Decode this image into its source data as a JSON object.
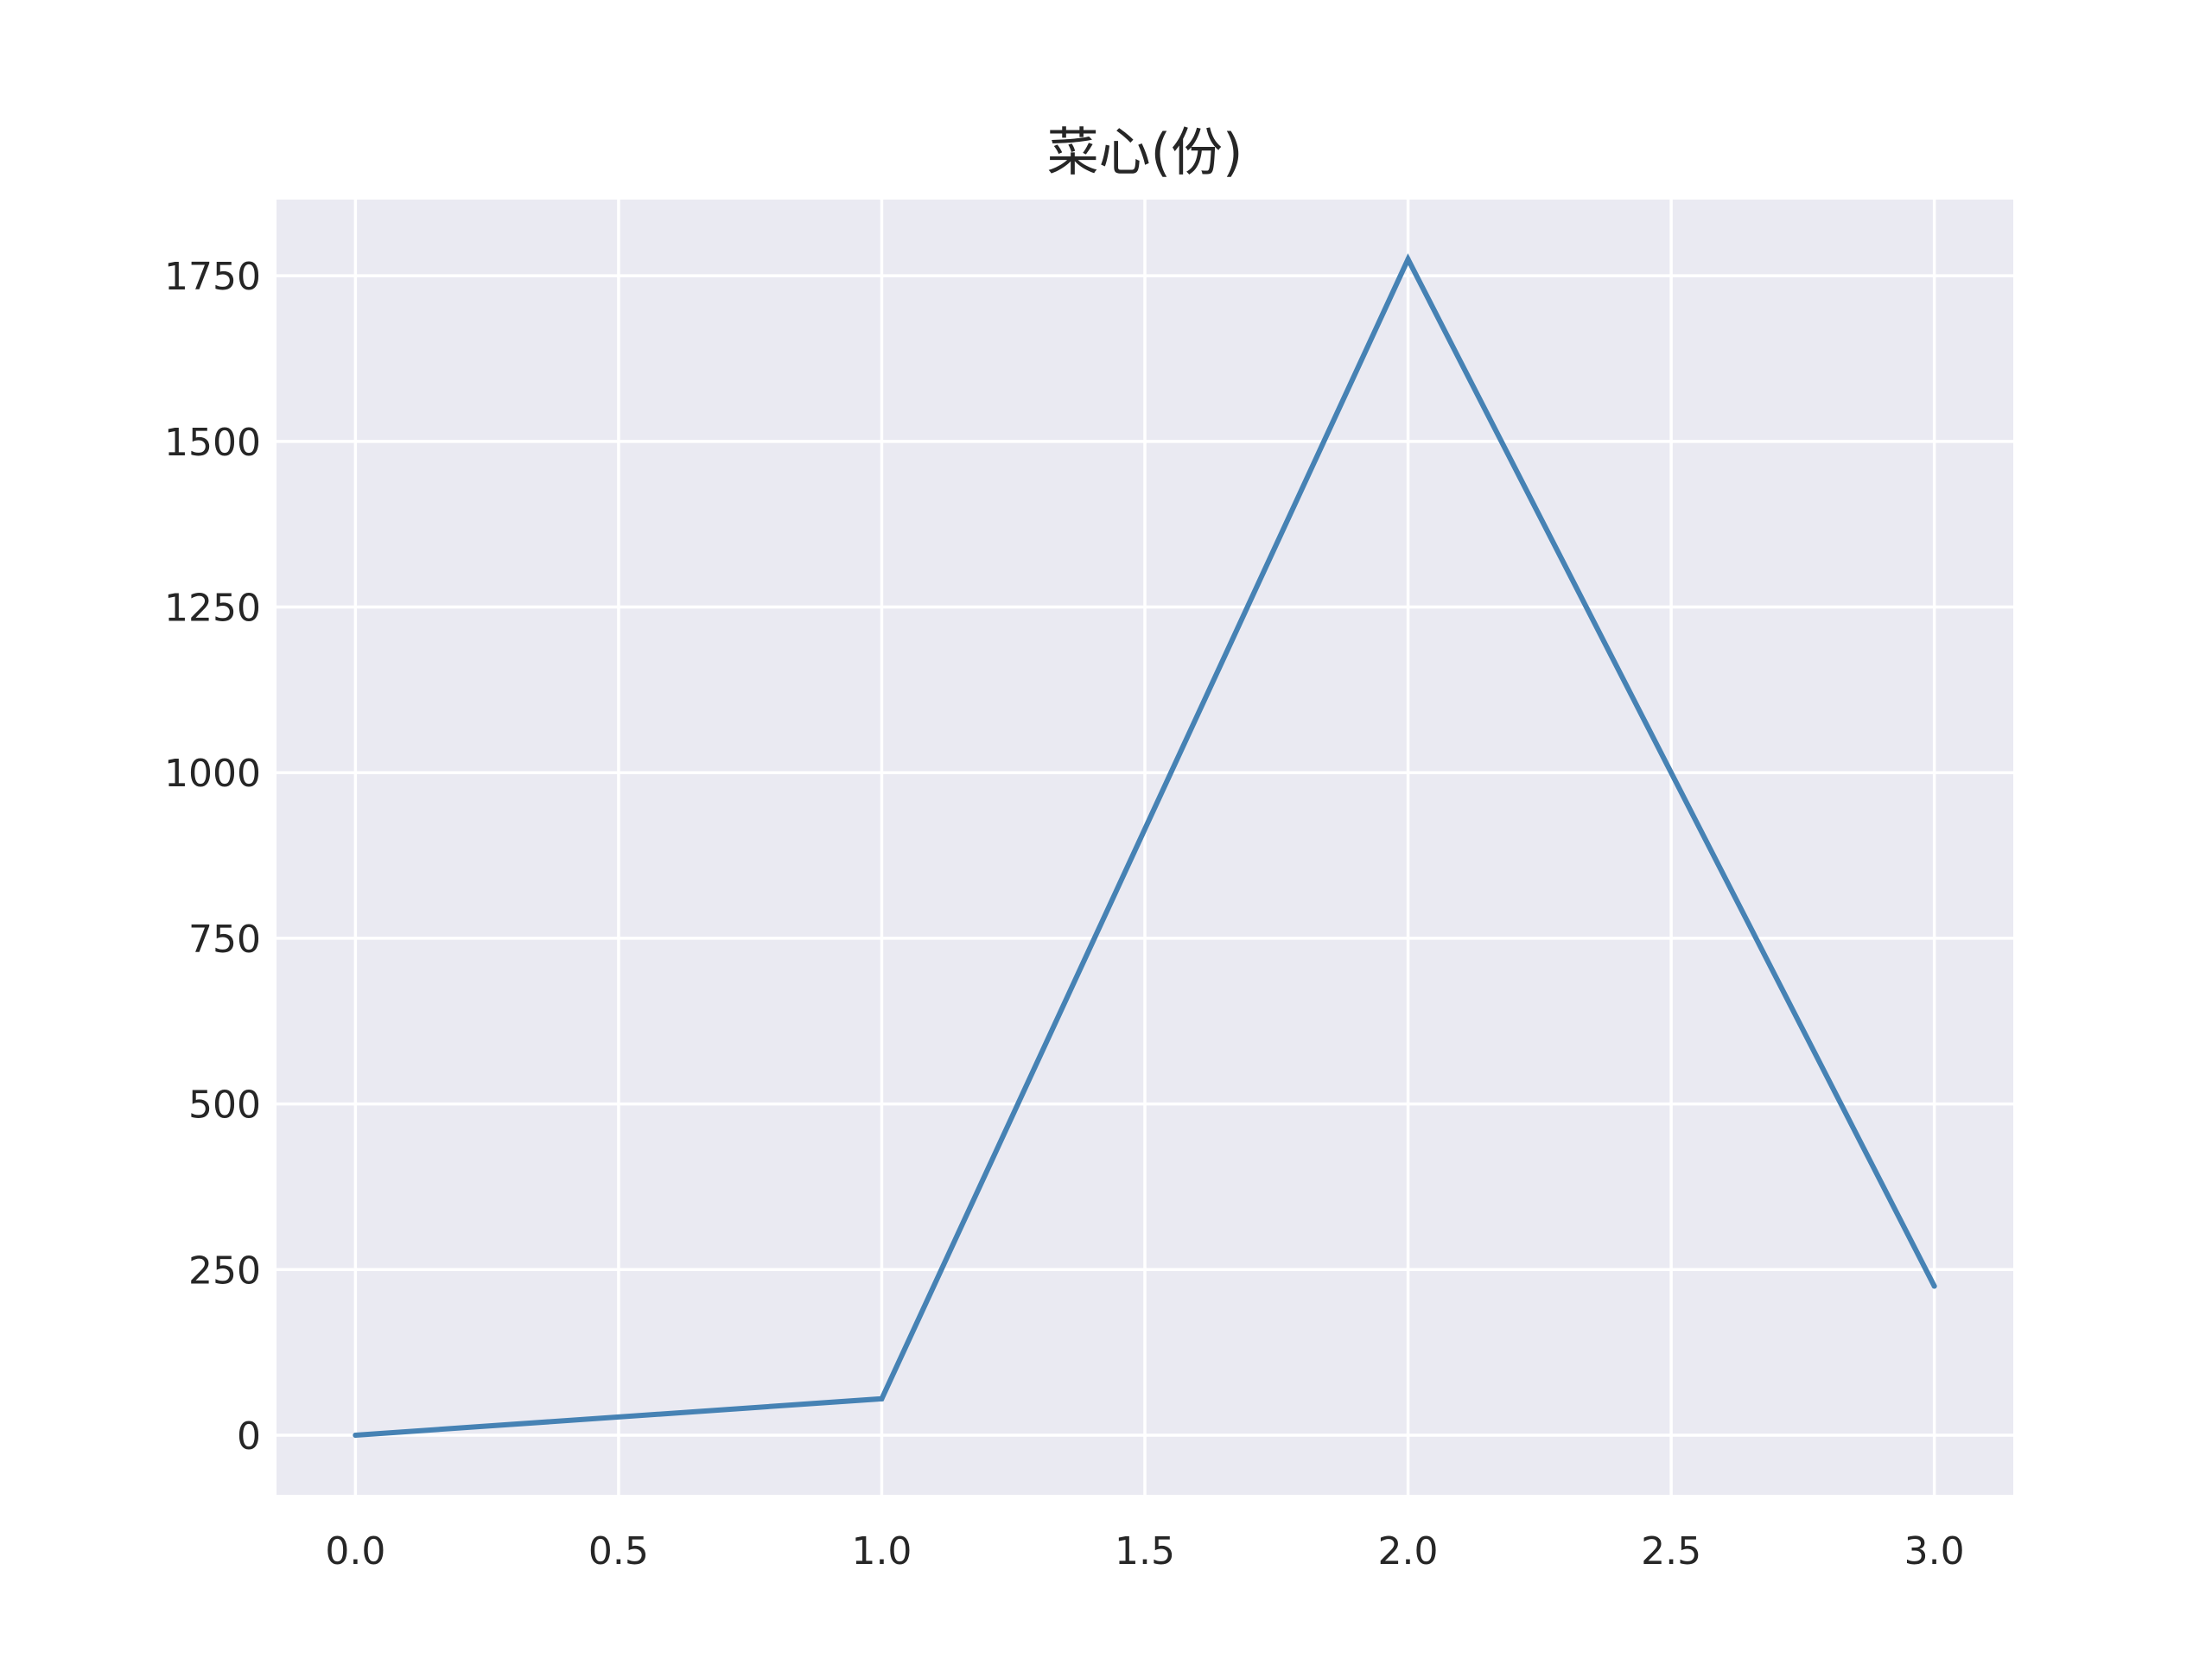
{
  "chart_data": {
    "type": "line",
    "title": "菜心(份)",
    "xlabel": "",
    "ylabel": "",
    "x": [
      0,
      1,
      2,
      3
    ],
    "series": [
      {
        "values": [
          0,
          55,
          1775,
          225
        ],
        "color": "#4682b4"
      }
    ],
    "xlim": [
      -0.15,
      3.15
    ],
    "ylim": [
      -90,
      1865
    ],
    "xticks": [
      0,
      0.5,
      1,
      1.5,
      2,
      2.5,
      3
    ],
    "xtick_labels": [
      "0.0",
      "0.5",
      "1.0",
      "1.5",
      "2.0",
      "2.5",
      "3.0"
    ],
    "yticks": [
      0,
      250,
      500,
      750,
      1000,
      1250,
      1500,
      1750
    ],
    "ytick_labels": [
      "0",
      "250",
      "500",
      "750",
      "1000",
      "1250",
      "1500",
      "1750"
    ],
    "grid": true,
    "background": "#eaeaf2"
  }
}
